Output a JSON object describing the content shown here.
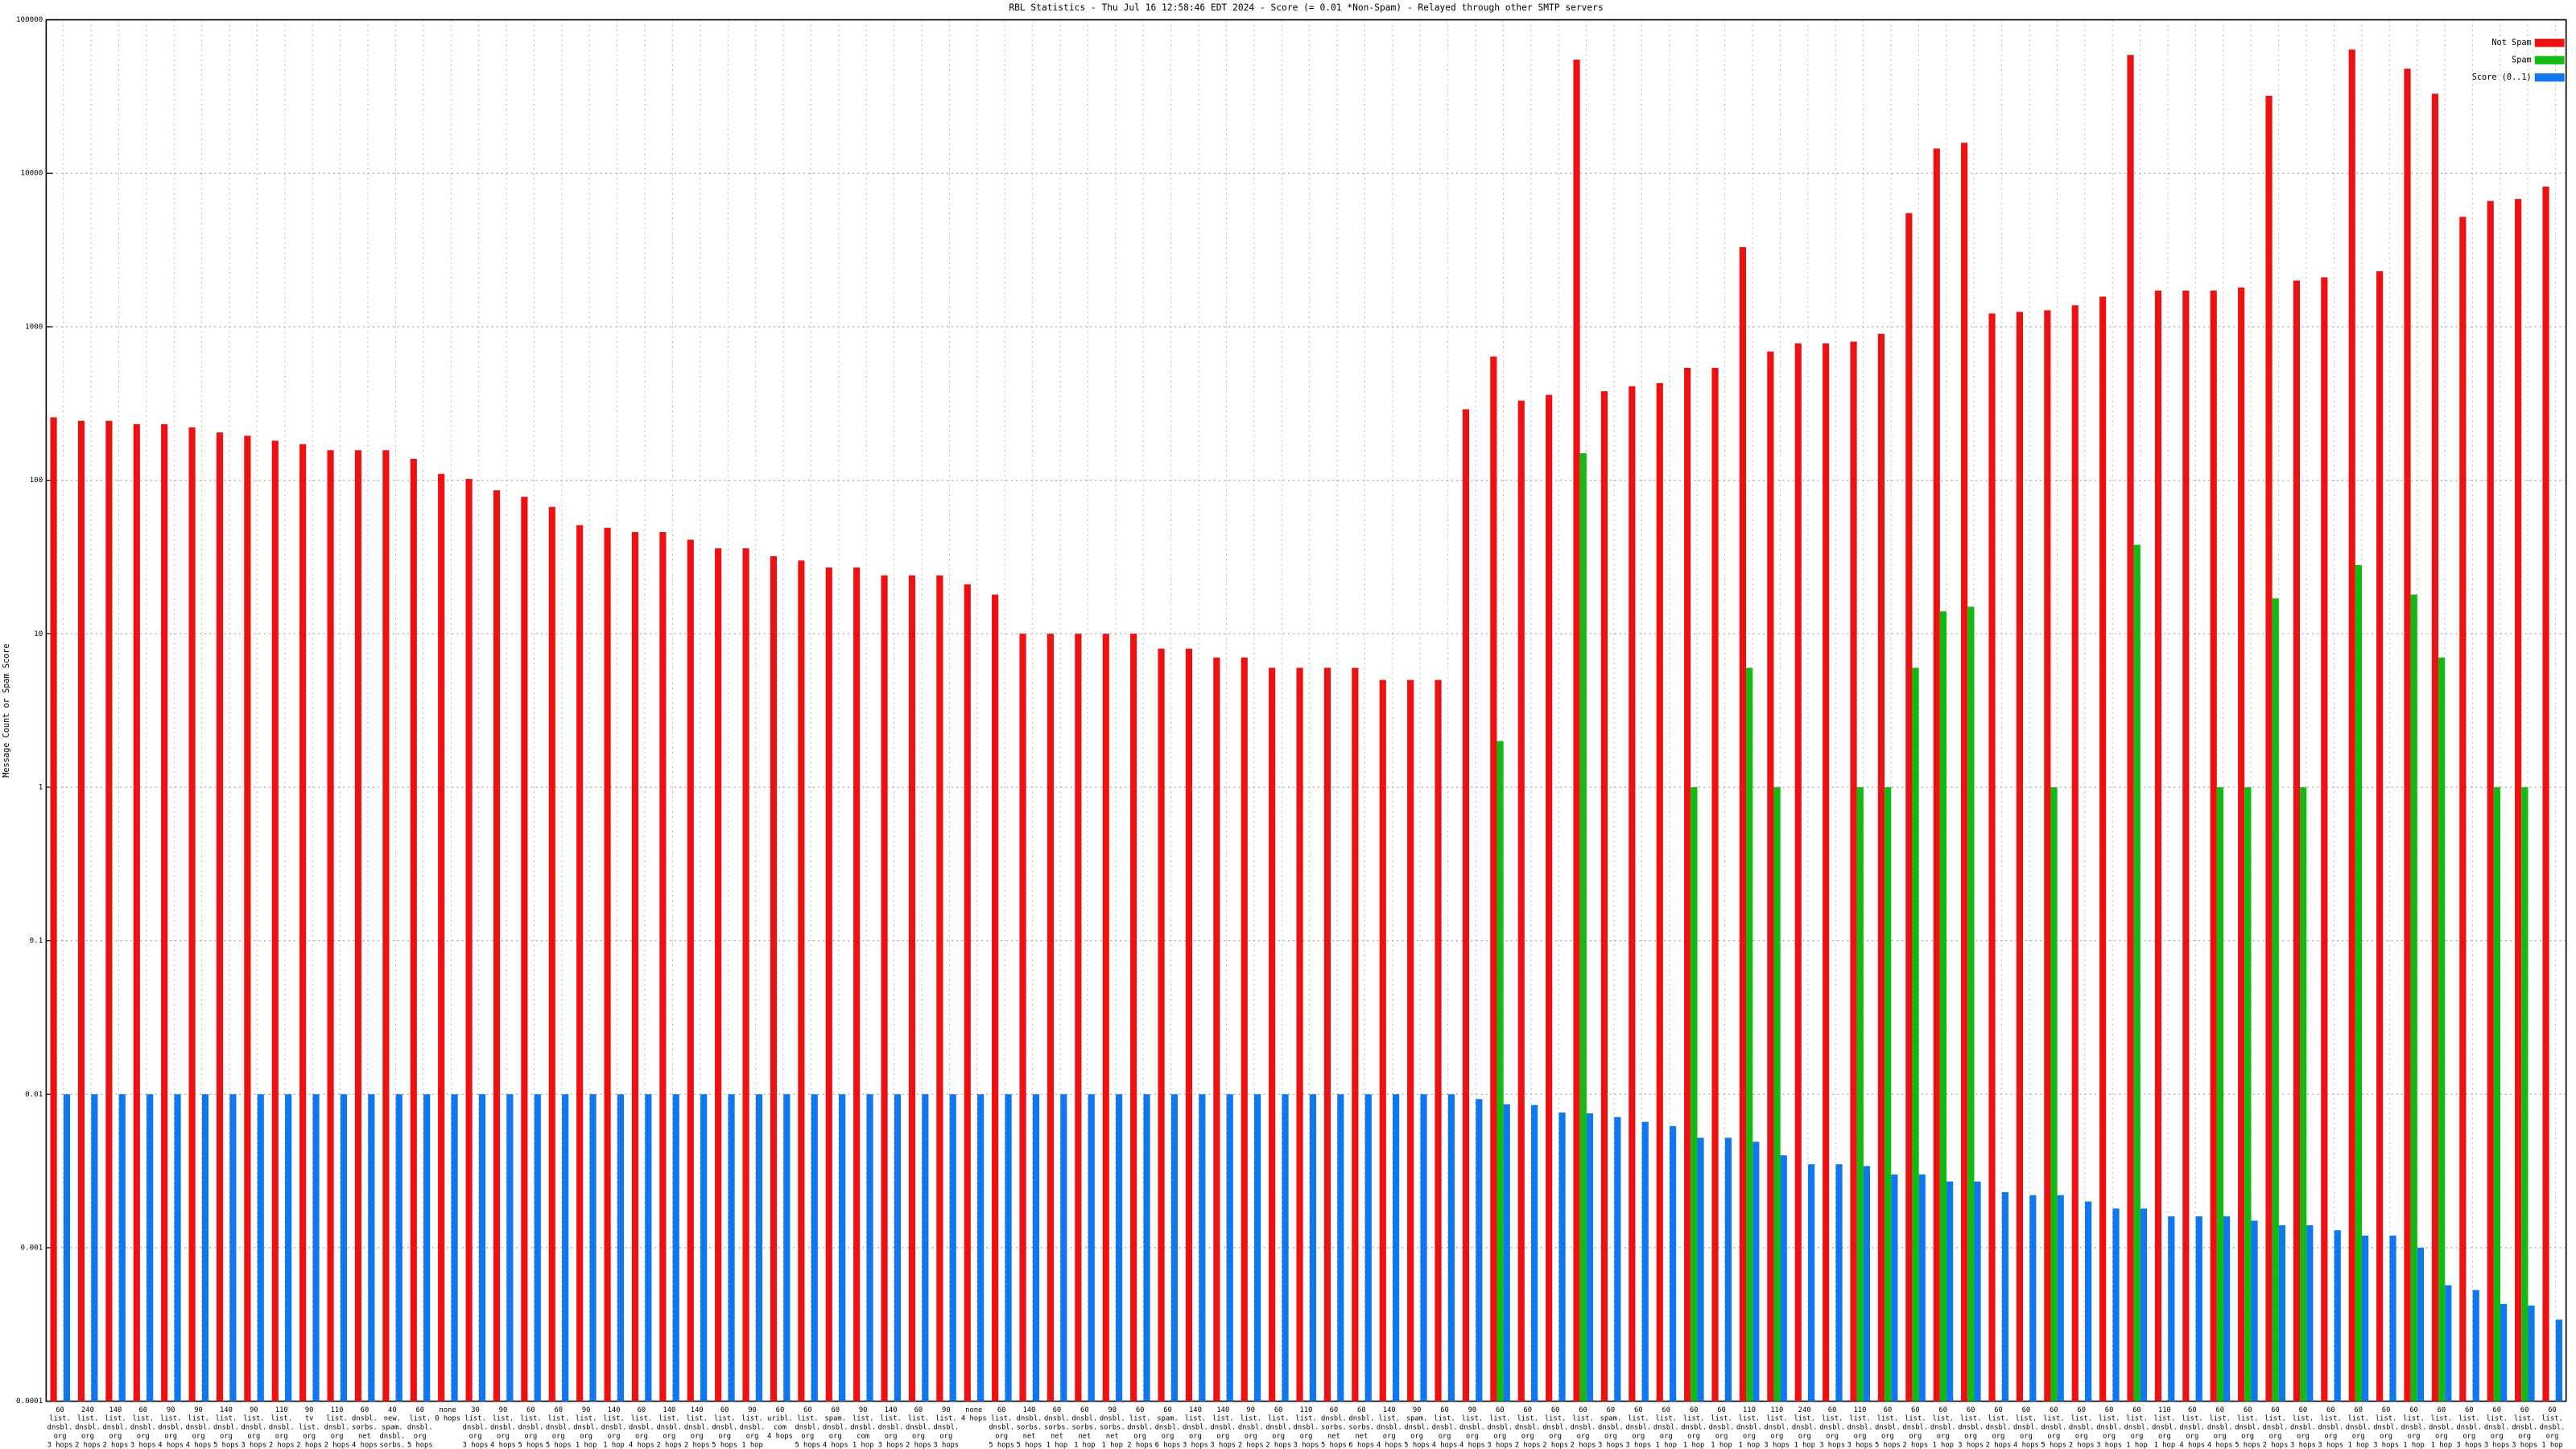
{
  "chart_data": {
    "type": "bar",
    "title": "RBL Statistics - Thu Jul 16 12:58:46 EDT 2024 - Score (= 0.01 *Non-Spam) - Relayed through other SMTP servers",
    "y_label": "Message Count or Spam Score",
    "log_scale": true,
    "grid": true,
    "legend": "top-right",
    "ylim": [
      0.0001,
      100000
    ],
    "yticks": [
      0.0001,
      0.001,
      0.01,
      0.1,
      1,
      10,
      100,
      1000,
      10000,
      100000
    ],
    "categories": [
      [
        "60",
        "list.",
        "dnsbl.",
        "org",
        "3 hops"
      ],
      [
        "240",
        "list.",
        "dnsbl.",
        "org",
        "2 hops"
      ],
      [
        "140",
        "list.",
        "dnsbl.",
        "org",
        "2 hops"
      ],
      [
        "60",
        "list.",
        "dnsbl.",
        "org",
        "3 hops"
      ],
      [
        "90",
        "list.",
        "dnsbl.",
        "org",
        "4 hops"
      ],
      [
        "90",
        "list.",
        "dnsbl.",
        "org",
        "4 hops"
      ],
      [
        "140",
        "list.",
        "dnsbl.",
        "org",
        "5 hops"
      ],
      [
        "90",
        "list.",
        "dnsbl.",
        "org",
        "3 hops"
      ],
      [
        "110",
        "list.",
        "dnsbl.",
        "org",
        "2 hops"
      ],
      [
        "90",
        "tv",
        "list.",
        "org",
        "2 hops"
      ],
      [
        "110",
        "list.",
        "dnsbl.",
        "org",
        "2 hops"
      ],
      [
        "60",
        "dnsbl.",
        "sorbs.",
        "net",
        "4 hops"
      ],
      [
        "40",
        "new.",
        "spam.",
        "dnsbl.",
        "sorbs."
      ],
      [
        "60",
        "list.",
        "dnsbl.",
        "org",
        "5 hops"
      ],
      [
        "none",
        "0 hops"
      ],
      [
        "30",
        "list.",
        "dnsbl.",
        "org",
        "3 hops"
      ],
      [
        "90",
        "list.",
        "dnsbl.",
        "org",
        "4 hops"
      ],
      [
        "60",
        "list.",
        "dnsbl.",
        "org",
        "5 hops"
      ],
      [
        "60",
        "list.",
        "dnsbl.",
        "org",
        "5 hops"
      ],
      [
        "90",
        "list.",
        "dnsbl.",
        "org",
        "1 hop"
      ],
      [
        "140",
        "list.",
        "dnsbl.",
        "org",
        "1 hop"
      ],
      [
        "60",
        "list.",
        "dnsbl.",
        "org",
        "4 hops"
      ],
      [
        "140",
        "list.",
        "dnsbl.",
        "org",
        "2 hops"
      ],
      [
        "140",
        "list.",
        "dnsbl.",
        "org",
        "2 hops"
      ],
      [
        "60",
        "list.",
        "dnsbl.",
        "org",
        "5 hops"
      ],
      [
        "90",
        "list.",
        "dnsbl.",
        "org",
        "1 hop"
      ],
      [
        "60",
        "uribl.",
        "com",
        "4 hops"
      ],
      [
        "60",
        "list.",
        "dnsbl.",
        "org",
        "5 hops"
      ],
      [
        "60",
        "spam.",
        "dnsbl.",
        "org",
        "4 hops"
      ],
      [
        "90",
        "list.",
        "dnsbl.",
        "com",
        "1 hop"
      ],
      [
        "140",
        "list.",
        "dnsbl.",
        "org",
        "3 hops"
      ],
      [
        "60",
        "list.",
        "dnsbl.",
        "org",
        "2 hops"
      ],
      [
        "90",
        "list.",
        "dnsbl.",
        "org",
        "3 hops"
      ],
      [
        "none",
        "4 hops"
      ],
      [
        "60",
        "list.",
        "dnsbl.",
        "org",
        "5 hops"
      ],
      [
        "140",
        "dnsbl.",
        "sorbs.",
        "net",
        "5 hops"
      ],
      [
        "60",
        "dnsbl.",
        "sorbs.",
        "net",
        "1 hop"
      ],
      [
        "60",
        "dnsbl.",
        "sorbs.",
        "net",
        "1 hop"
      ],
      [
        "90",
        "dnsbl.",
        "sorbs.",
        "net",
        "1 hop"
      ],
      [
        "60",
        "list.",
        "dnsbl.",
        "org",
        "2 hops"
      ],
      [
        "60",
        "spam.",
        "dnsbl.",
        "org",
        "6 hops"
      ],
      [
        "140",
        "list.",
        "dnsbl.",
        "org",
        "3 hops"
      ],
      [
        "140",
        "list.",
        "dnsbl.",
        "org",
        "3 hops"
      ],
      [
        "90",
        "list.",
        "dnsbl.",
        "org",
        "2 hops"
      ],
      [
        "60",
        "list.",
        "dnsbl.",
        "org",
        "2 hops"
      ],
      [
        "110",
        "list.",
        "dnsbl.",
        "org",
        "3 hops"
      ],
      [
        "60",
        "dnsbl.",
        "sorbs.",
        "net",
        "5 hops"
      ],
      [
        "60",
        "dnsbl.",
        "sorbs.",
        "net",
        "6 hops"
      ],
      [
        "140",
        "list.",
        "dnsbl.",
        "org",
        "4 hops"
      ],
      [
        "90",
        "spam.",
        "dnsbl.",
        "org",
        "5 hops"
      ],
      [
        "60",
        "list.",
        "dnsbl.",
        "org",
        "4 hops"
      ],
      [
        "90",
        "list.",
        "dnsbl.",
        "org",
        "4 hops"
      ],
      [
        "60",
        "list.",
        "dnsbl.",
        "org",
        "3 hops"
      ],
      [
        "60",
        "list.",
        "dnsbl.",
        "org",
        "2 hops"
      ],
      [
        "60",
        "list.",
        "dnsbl.",
        "org",
        "2 hops"
      ],
      [
        "60",
        "list.",
        "dnsbl.",
        "org",
        "2 hops"
      ],
      [
        "60",
        "spam.",
        "dnsbl.",
        "org",
        "3 hops"
      ],
      [
        "60",
        "list.",
        "dnsbl.",
        "org",
        "3 hops"
      ],
      [
        "60",
        "list.",
        "dnsbl.",
        "org",
        "1 hop"
      ],
      [
        "60",
        "list.",
        "dnsbl.",
        "org",
        "1 hop"
      ],
      [
        "60",
        "list.",
        "dnsbl.",
        "org",
        "1 hop"
      ],
      [
        "110",
        "list.",
        "dnsbl.",
        "org",
        "1 hop"
      ],
      [
        "110",
        "list.",
        "dnsbl.",
        "org",
        "3 hops"
      ],
      [
        "240",
        "list.",
        "dnsbl.",
        "org",
        "1 hop"
      ],
      [
        "60",
        "list.",
        "dnsbl.",
        "org",
        "3 hops"
      ],
      [
        "110",
        "list.",
        "dnsbl.",
        "org",
        "3 hops"
      ],
      [
        "60",
        "list.",
        "dnsbl.",
        "org",
        "5 hops"
      ],
      [
        "60",
        "list.",
        "dnsbl.",
        "org",
        "2 hops"
      ],
      [
        "60",
        "list.",
        "dnsbl.",
        "org",
        "1 hop"
      ],
      [
        "60",
        "list.",
        "dnsbl.",
        "org",
        "3 hops"
      ],
      [
        "60",
        "list.",
        "dnsbl.",
        "org",
        "2 hops"
      ],
      [
        "60",
        "list.",
        "dnsbl.",
        "org",
        "4 hops"
      ],
      [
        "60",
        "list.",
        "dnsbl.",
        "org",
        "5 hops"
      ],
      [
        "60",
        "list.",
        "dnsbl.",
        "org",
        "2 hops"
      ],
      [
        "60",
        "list.",
        "dnsbl.",
        "org",
        "3 hops"
      ],
      [
        "60",
        "list.",
        "dnsbl.",
        "org",
        "1 hop"
      ],
      [
        "110",
        "list.",
        "dnsbl.",
        "org",
        "1 hop"
      ],
      [
        "60",
        "list.",
        "dnsbl.",
        "org",
        "4 hops"
      ],
      [
        "60",
        "list.",
        "dnsbl.",
        "org",
        "4 hops"
      ],
      [
        "60",
        "list.",
        "dnsbl.",
        "org",
        "5 hops"
      ],
      [
        "60",
        "list.",
        "dnsbl.",
        "org",
        "2 hops"
      ],
      [
        "60",
        "list.",
        "dnsbl.",
        "org",
        "3 hops"
      ],
      [
        "60",
        "list.",
        "dnsbl.",
        "org",
        "3 hops"
      ],
      [
        "60",
        "list.",
        "dnsbl.",
        "org",
        "1 hop"
      ],
      [
        "60",
        "list.",
        "dnsbl.",
        "org",
        "3 hops"
      ],
      [
        "60",
        "list.",
        "dnsbl.",
        "org",
        "1 hop"
      ],
      [
        "60",
        "list.",
        "dnsbl.",
        "org",
        "1 hop"
      ],
      [
        "60",
        "list.",
        "dnsbl.",
        "org",
        "3 hops"
      ],
      [
        "60",
        "list.",
        "dnsbl.",
        "org",
        "3 hops"
      ],
      [
        "60",
        "list.",
        "dnsbl.",
        "org",
        "3 hops"
      ],
      [
        "60",
        "list.",
        "dnsbl.",
        "org",
        "1 hop"
      ]
    ],
    "series": [
      {
        "name": "Not Spam",
        "color": "#ee1111",
        "values": [
          257,
          244,
          244,
          232,
          232,
          221,
          205,
          195,
          181,
          172,
          157,
          157,
          157,
          138,
          110,
          102,
          86,
          78,
          67,
          51,
          49,
          46,
          46,
          41,
          36,
          36,
          32,
          30,
          27,
          27,
          24,
          24,
          24,
          21,
          18,
          10,
          10,
          10,
          10,
          10,
          8,
          8,
          7,
          7,
          6,
          6,
          6,
          6,
          5,
          5,
          5,
          290,
          640,
          330,
          360,
          55000,
          380,
          410,
          430,
          540,
          540,
          3300,
          690,
          780,
          780,
          800,
          900,
          5500,
          14500,
          15800,
          1220,
          1250,
          1280,
          1380,
          1570,
          59000,
          1720,
          1720,
          1720,
          1800,
          32000,
          2000,
          2100,
          64000,
          2300,
          48000,
          33000,
          5200,
          6600,
          6800,
          8200
        ]
      },
      {
        "name": "Spam",
        "color": "#11bb11",
        "values": [
          0,
          0,
          0,
          0,
          0,
          0,
          0,
          0,
          0,
          0,
          0,
          0,
          0,
          0,
          0,
          0,
          0,
          0,
          0,
          0,
          0,
          0,
          0,
          0,
          0,
          0,
          0,
          0,
          0,
          0,
          0,
          0,
          0,
          0,
          0,
          0,
          0,
          0,
          0,
          0,
          0,
          0,
          0,
          0,
          0,
          0,
          0,
          0,
          0,
          0,
          0,
          0,
          2,
          0,
          0,
          150,
          0,
          0,
          0,
          1,
          0,
          6,
          1,
          0,
          0,
          1,
          1,
          6,
          14,
          15,
          0,
          0,
          1,
          0,
          0,
          38,
          0,
          0,
          1,
          1,
          17,
          1,
          0,
          28,
          0,
          18,
          7,
          0,
          1,
          1,
          0
        ]
      },
      {
        "name": "Score (0..1)",
        "color": "#1177ee",
        "values": [
          0.01,
          0.01,
          0.01,
          0.01,
          0.01,
          0.01,
          0.01,
          0.01,
          0.01,
          0.01,
          0.01,
          0.01,
          0.01,
          0.01,
          0.01,
          0.01,
          0.01,
          0.01,
          0.01,
          0.01,
          0.01,
          0.01,
          0.01,
          0.01,
          0.01,
          0.01,
          0.01,
          0.01,
          0.01,
          0.01,
          0.01,
          0.01,
          0.01,
          0.01,
          0.01,
          0.01,
          0.01,
          0.01,
          0.01,
          0.01,
          0.01,
          0.01,
          0.01,
          0.01,
          0.01,
          0.01,
          0.01,
          0.01,
          0.01,
          0.01,
          0.01,
          0.0093,
          0.0086,
          0.0085,
          0.0076,
          0.0075,
          0.0071,
          0.0066,
          0.0062,
          0.0052,
          0.0052,
          0.0049,
          0.004,
          0.0035,
          0.0035,
          0.0034,
          0.003,
          0.003,
          0.0027,
          0.0027,
          0.0023,
          0.0022,
          0.0022,
          0.002,
          0.0018,
          0.0018,
          0.0016,
          0.0016,
          0.0016,
          0.0015,
          0.0014,
          0.0014,
          0.0013,
          0.0012,
          0.0012,
          0.001,
          0.00057,
          0.00053,
          0.00043,
          0.00042,
          0.00034
        ]
      }
    ]
  }
}
